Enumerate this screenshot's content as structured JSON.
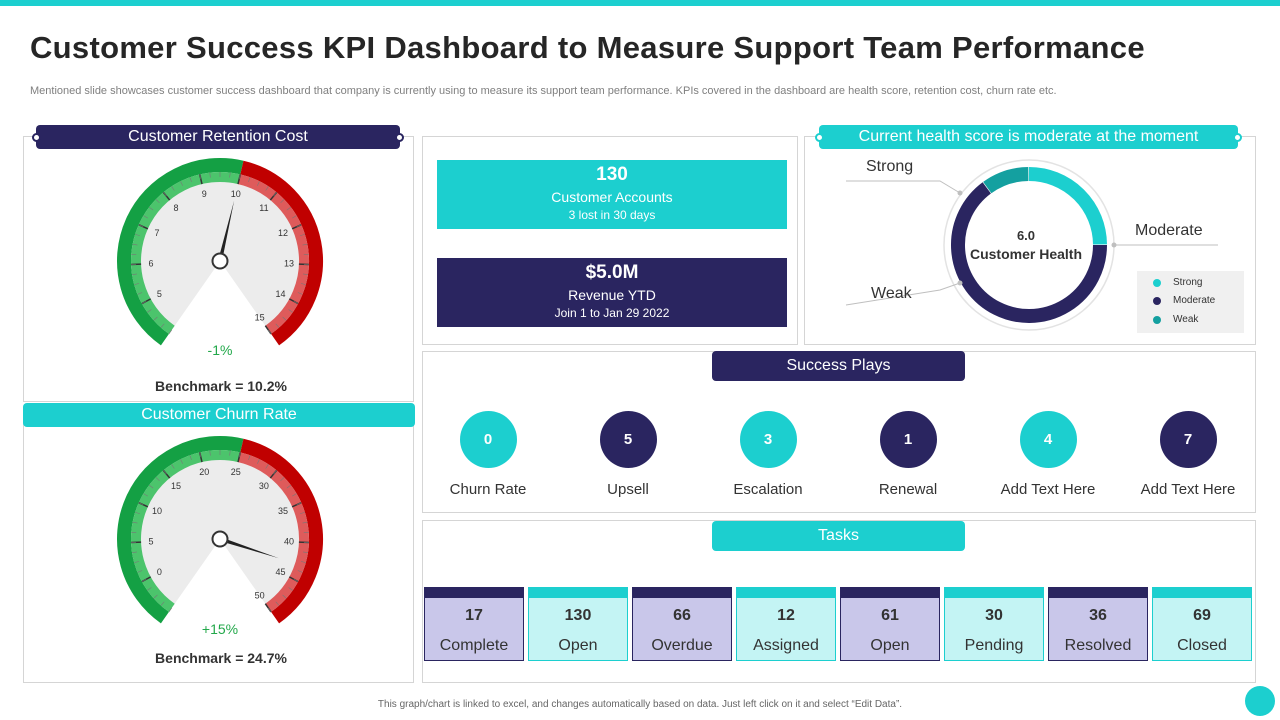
{
  "title": "Customer Success KPI Dashboard to Measure Support Team Performance",
  "subtitle": "Mentioned slide showcases customer success dashboard that company is currently using to measure its support team performance. KPIs covered in the dashboard are health score, retention cost, churn rate etc.",
  "footer": "This graph/chart is linked to excel, and changes automatically based on data. Just left click on it and select “Edit Data”.",
  "colors": {
    "navy": "#2a2560",
    "teal": "#1ccfcf",
    "green": "#22a84a",
    "red": "#c00000",
    "light_purple": "#c9c7ea",
    "light_teal": "#c4f4f4"
  },
  "retention": {
    "header": "Customer Retention Cost",
    "change": "-1%",
    "benchmark": "Benchmark = 10.2%"
  },
  "churn": {
    "header": "Customer Churn Rate",
    "change": "+15%",
    "benchmark": "Benchmark = 24.7%"
  },
  "accounts": {
    "value": "130",
    "label": "Customer Accounts",
    "sub": "3 lost in 30 days"
  },
  "revenue": {
    "value": "$5.0M",
    "label": "Revenue YTD",
    "sub": "Join 1 to Jan 29 2022"
  },
  "health": {
    "header": "Current health score is moderate at the moment",
    "center_value": "6.0",
    "center_label": "Customer Health",
    "labels": {
      "strong": "Strong",
      "moderate": "Moderate",
      "weak": "Weak"
    },
    "legend": [
      "Strong",
      "Moderate",
      "Weak"
    ]
  },
  "plays": {
    "header": "Success Plays",
    "items": [
      {
        "value": "0",
        "label": "Churn Rate"
      },
      {
        "value": "5",
        "label": "Upsell"
      },
      {
        "value": "3",
        "label": "Escalation"
      },
      {
        "value": "1",
        "label": "Renewal"
      },
      {
        "value": "4",
        "label": "Add Text Here"
      },
      {
        "value": "7",
        "label": "Add Text Here"
      }
    ]
  },
  "tasks": {
    "header": "Tasks",
    "items": [
      {
        "value": "17",
        "label": "Complete"
      },
      {
        "value": "130",
        "label": "Open"
      },
      {
        "value": "66",
        "label": "Overdue"
      },
      {
        "value": "12",
        "label": "Assigned"
      },
      {
        "value": "61",
        "label": "Open"
      },
      {
        "value": "30",
        "label": "Pending"
      },
      {
        "value": "36",
        "label": "Resolved"
      },
      {
        "value": "69",
        "label": "Closed"
      }
    ]
  },
  "chart_data": [
    {
      "type": "gauge",
      "title": "Customer Retention Cost",
      "min": 4,
      "max": 15,
      "ticks": [
        "5",
        "6",
        "7",
        "8",
        "9",
        "10",
        "11",
        "12",
        "13",
        "14",
        "15"
      ],
      "green_range": [
        4,
        10
      ],
      "red_range": [
        10,
        15
      ],
      "value": 10
    },
    {
      "type": "gauge",
      "title": "Customer Churn Rate",
      "min": -5,
      "max": 50,
      "ticks": [
        "0",
        "5",
        "10",
        "15",
        "20",
        "25",
        "30",
        "35",
        "40",
        "45",
        "50"
      ],
      "green_range": [
        -5,
        25
      ],
      "red_range": [
        25,
        50
      ],
      "value": 43
    },
    {
      "type": "pie",
      "title": "Customer Health",
      "categories": [
        "Strong",
        "Moderate",
        "Weak"
      ],
      "values": [
        25,
        65,
        10
      ]
    }
  ]
}
